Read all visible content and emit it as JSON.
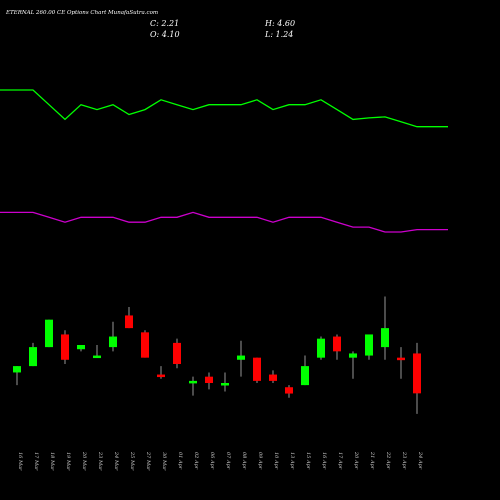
{
  "header": {
    "title": "ETERNAL 260.00 CE Options Chart MunafaSutra.com",
    "close": "C: 2.21",
    "open": "O: 4.10",
    "high": "H: 4.60",
    "low": "L: 1.24"
  },
  "chart_data": {
    "type": "candlestick",
    "categories": [
      "16 Mar",
      "17 Mar",
      "18 Mar",
      "19 Mar",
      "20 Mar",
      "23 Mar",
      "24 Mar",
      "25 Mar",
      "27 Mar",
      "30 Mar",
      "01 Apr",
      "02 Apr",
      "06 Apr",
      "07 Apr",
      "08 Apr",
      "09 Apr",
      "10 Apr",
      "13 Apr",
      "15 Apr",
      "16 Apr",
      "17 Apr",
      "20 Apr",
      "21 Apr",
      "22 Apr",
      "23 Apr",
      "24 Apr"
    ],
    "candles": [
      {
        "o": 3.2,
        "h": 3.5,
        "l": 2.6,
        "c": 3.5,
        "color": "#00ff00"
      },
      {
        "o": 3.5,
        "h": 4.6,
        "l": 3.5,
        "c": 4.4,
        "color": "#00ff00"
      },
      {
        "o": 4.4,
        "h": 5.7,
        "l": 4.4,
        "c": 5.7,
        "color": "#00ff00"
      },
      {
        "o": 5.0,
        "h": 5.2,
        "l": 3.6,
        "c": 3.8,
        "color": "#ff0000"
      },
      {
        "o": 4.3,
        "h": 4.5,
        "l": 4.2,
        "c": 4.5,
        "color": "#00ff00"
      },
      {
        "o": 3.9,
        "h": 4.5,
        "l": 3.9,
        "c": 4.0,
        "color": "#00ff00"
      },
      {
        "o": 4.4,
        "h": 5.6,
        "l": 4.2,
        "c": 4.9,
        "color": "#00ff00"
      },
      {
        "o": 5.9,
        "h": 6.3,
        "l": 5.3,
        "c": 5.3,
        "color": "#ff0000"
      },
      {
        "o": 5.1,
        "h": 5.2,
        "l": 3.9,
        "c": 3.9,
        "color": "#ff0000"
      },
      {
        "o": 3.1,
        "h": 3.5,
        "l": 2.9,
        "c": 3.0,
        "color": "#ff0000"
      },
      {
        "o": 4.6,
        "h": 4.8,
        "l": 3.4,
        "c": 3.6,
        "color": "#ff0000"
      },
      {
        "o": 2.7,
        "h": 3.0,
        "l": 2.1,
        "c": 2.8,
        "color": "#00ff00"
      },
      {
        "o": 3.0,
        "h": 3.2,
        "l": 2.4,
        "c": 2.7,
        "color": "#ff0000"
      },
      {
        "o": 2.7,
        "h": 3.2,
        "l": 2.3,
        "c": 2.6,
        "color": "#00ff00"
      },
      {
        "o": 3.8,
        "h": 4.7,
        "l": 3.0,
        "c": 4.0,
        "color": "#00ff00"
      },
      {
        "o": 3.9,
        "h": 3.9,
        "l": 2.7,
        "c": 2.8,
        "color": "#ff0000"
      },
      {
        "o": 3.1,
        "h": 3.3,
        "l": 2.7,
        "c": 2.8,
        "color": "#ff0000"
      },
      {
        "o": 2.5,
        "h": 2.6,
        "l": 2.0,
        "c": 2.2,
        "color": "#ff0000"
      },
      {
        "o": 2.6,
        "h": 4.0,
        "l": 2.6,
        "c": 3.5,
        "color": "#00ff00"
      },
      {
        "o": 3.9,
        "h": 4.9,
        "l": 3.8,
        "c": 4.8,
        "color": "#00ff00"
      },
      {
        "o": 4.9,
        "h": 5.0,
        "l": 3.8,
        "c": 4.2,
        "color": "#ff0000"
      },
      {
        "o": 3.9,
        "h": 4.2,
        "l": 2.9,
        "c": 4.1,
        "color": "#00ff00"
      },
      {
        "o": 4.0,
        "h": 5.0,
        "l": 3.8,
        "c": 5.0,
        "color": "#00ff00"
      },
      {
        "o": 4.4,
        "h": 6.8,
        "l": 3.8,
        "c": 5.3,
        "color": "#00ff00"
      },
      {
        "o": 3.9,
        "h": 4.4,
        "l": 2.9,
        "c": 3.8,
        "color": "#ff0000"
      },
      {
        "o": 4.1,
        "h": 4.6,
        "l": 1.24,
        "c": 2.21,
        "color": "#ff0000"
      }
    ],
    "upper_line": {
      "color": "#00ff00",
      "values": [
        105,
        105,
        102,
        99,
        102,
        101,
        102,
        100,
        101,
        103,
        102,
        101,
        102,
        102,
        102,
        103,
        101,
        102,
        102,
        103,
        101,
        99,
        99.3,
        99.5,
        98.5,
        97.5
      ]
    },
    "lower_line": {
      "color": "#cc00cc",
      "values": [
        80,
        80,
        79,
        78,
        79,
        79,
        79,
        78,
        78,
        79,
        79,
        80,
        79,
        79,
        79,
        79,
        78,
        79,
        79,
        79,
        78,
        77,
        77,
        76,
        76,
        76.5
      ]
    },
    "ylim": [
      0,
      9
    ]
  }
}
